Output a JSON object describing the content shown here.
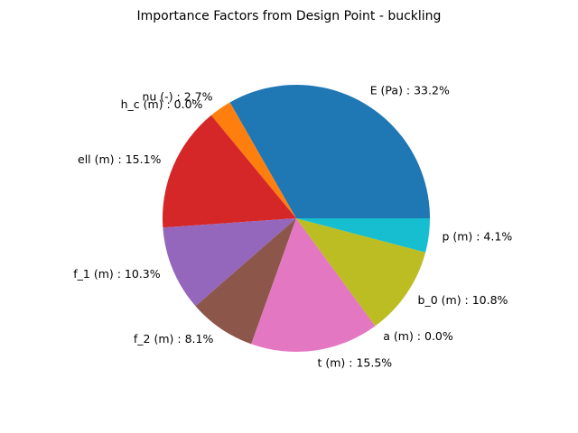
{
  "chart_data": {
    "type": "pie",
    "title": "Importance Factors from Design Point - buckling",
    "start_angle_deg": 0,
    "direction": "counterclockwise",
    "slices": [
      {
        "name": "E (Pa)",
        "value": 33.2,
        "label": "E (Pa) : 33.2%",
        "color": "#1f77b4"
      },
      {
        "name": "nu (-)",
        "value": 2.7,
        "label": "nu (-) : 2.7%",
        "color": "#ff7f0e"
      },
      {
        "name": "h_c (m)",
        "value": 0.0,
        "label": "h_c (m) : 0.0%",
        "color": "#2ca02c"
      },
      {
        "name": "ell (m)",
        "value": 15.1,
        "label": "ell (m) : 15.1%",
        "color": "#d62728"
      },
      {
        "name": "f_1 (m)",
        "value": 10.3,
        "label": "f_1 (m) : 10.3%",
        "color": "#9467bd"
      },
      {
        "name": "f_2 (m)",
        "value": 8.1,
        "label": "f_2 (m) : 8.1%",
        "color": "#8c564b"
      },
      {
        "name": "t (m)",
        "value": 15.5,
        "label": "t (m) : 15.5%",
        "color": "#e377c2"
      },
      {
        "name": "a (m)",
        "value": 0.0,
        "label": "a (m) : 0.0%",
        "color": "#7f7f7f"
      },
      {
        "name": "b_0 (m)",
        "value": 10.8,
        "label": "b_0 (m) : 10.8%",
        "color": "#bcbd22"
      },
      {
        "name": "p (m)",
        "value": 4.1,
        "label": "p (m) : 4.1%",
        "color": "#17becf"
      }
    ]
  }
}
